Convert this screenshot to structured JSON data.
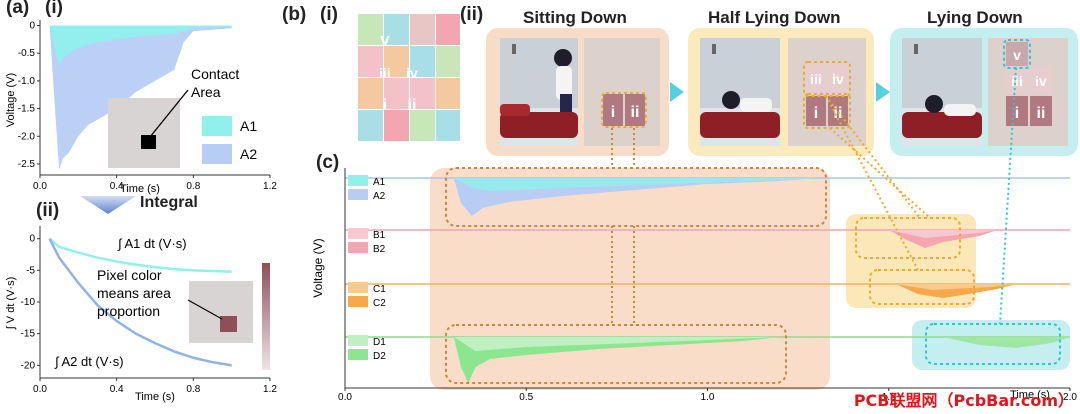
{
  "panel_labels": {
    "a": "(a)",
    "a_i": "(i)",
    "a_ii": "(ii)",
    "b": "(b)",
    "b_i": "(i)",
    "b_ii": "(ii)",
    "c": "(c)"
  },
  "integral_label": "Integral",
  "grid_labels": {
    "v": "v",
    "iii": "iii",
    "iv": "iv",
    "i": "i",
    "ii": "ii"
  },
  "scenes": [
    {
      "title": "Sitting Down"
    },
    {
      "title": "Half Lying Down"
    },
    {
      "title": "Lying Down"
    }
  ],
  "annotations": {
    "contact_area": [
      "Contact",
      "Area"
    ],
    "pixel_color": [
      "Pixel color",
      "means area",
      "proportion"
    ],
    "int_a1": "∫ A1 dt (V·s)",
    "int_a2": "∫ A2 dt (V·s)"
  },
  "watermark": "PCB联盟网（PcbBar.com）",
  "colors": {
    "a1": "#8ff0ec",
    "a2": "#b7cdf4",
    "b": "#f4a6b0",
    "c": "#f7a84a",
    "d": "#8be68f"
  },
  "chart_data": [
    {
      "id": "a_i",
      "type": "area",
      "xlabel": "Time (s)",
      "ylabel": "Voltage (V)",
      "xlim": [
        0,
        1.2
      ],
      "ylim": [
        -2.7,
        0.1
      ],
      "xticks": [
        "0.0",
        "0.4",
        "0.8",
        "1.2"
      ],
      "yticks": [
        "0",
        "-0.5",
        "-1.0",
        "-1.5",
        "-2.0",
        "-2.5"
      ],
      "legend": [
        "A1",
        "A2"
      ],
      "x": [
        0.05,
        0.08,
        0.1,
        0.12,
        0.15,
        0.2,
        0.25,
        0.3,
        0.4,
        0.5,
        0.6,
        0.7,
        0.75,
        0.8,
        1.0
      ],
      "series": [
        {
          "name": "A1",
          "values": [
            0,
            -0.5,
            -0.7,
            -0.6,
            -0.5,
            -0.4,
            -0.35,
            -0.3,
            -0.25,
            -0.2,
            -0.18,
            -0.15,
            -0.1,
            -0.05,
            -0.02
          ]
        },
        {
          "name": "A2",
          "values": [
            0,
            -1.6,
            -2.6,
            -2.4,
            -2.3,
            -2.0,
            -1.8,
            -1.7,
            -1.5,
            -1.2,
            -1.0,
            -0.8,
            -0.3,
            -0.1,
            -0.05
          ]
        }
      ]
    },
    {
      "id": "a_ii",
      "type": "line",
      "xlabel": "Time (s)",
      "ylabel": "∫ V dt (V·s)",
      "xlim": [
        0,
        1.2
      ],
      "ylim": [
        -22,
        2
      ],
      "xticks": [
        "0.0",
        "0.4",
        "0.8",
        "1.2"
      ],
      "yticks": [
        "0",
        "-5",
        "-10",
        "-15",
        "-20"
      ],
      "x": [
        0.05,
        0.1,
        0.2,
        0.3,
        0.4,
        0.5,
        0.6,
        0.7,
        0.8,
        0.9,
        1.0
      ],
      "series": [
        {
          "name": "A1",
          "values": [
            0,
            -1.3,
            -2.2,
            -3.0,
            -3.6,
            -4.1,
            -4.5,
            -4.8,
            -5.0,
            -5.1,
            -5.2
          ]
        },
        {
          "name": "A2",
          "values": [
            0,
            -3,
            -7,
            -10.5,
            -13,
            -15,
            -16.5,
            -17.8,
            -18.8,
            -19.5,
            -20
          ]
        }
      ]
    },
    {
      "id": "c",
      "type": "area",
      "xlabel": "Time (s)",
      "ylabel": "Voltage (V)",
      "xlim": [
        0,
        2.0
      ],
      "xticks": [
        "0.0",
        "0.5",
        "1.0",
        "1.5",
        "2.0"
      ],
      "legend": [
        "A1",
        "A2",
        "B1",
        "B2",
        "C1",
        "C2",
        "D1",
        "D2"
      ]
    }
  ]
}
